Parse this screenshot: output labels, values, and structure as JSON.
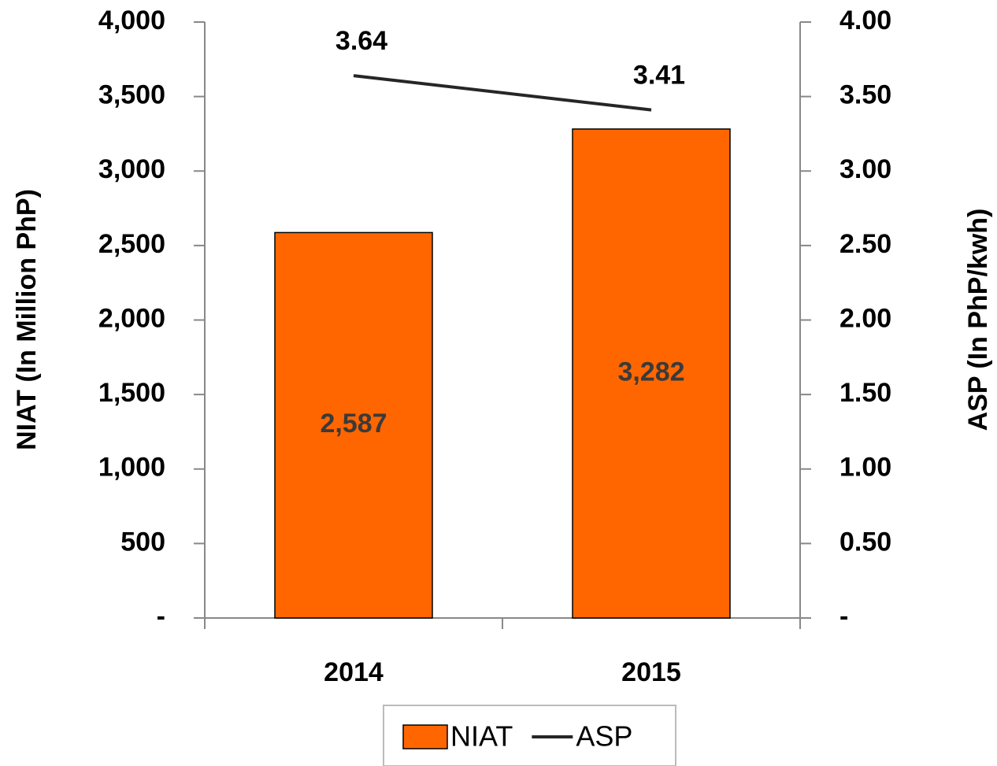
{
  "chart_data": {
    "type": "bar",
    "categories": [
      "2014",
      "2015"
    ],
    "series": [
      {
        "name": "NIAT",
        "type": "bar",
        "color": "#ff6600",
        "values": [
          2587,
          3282
        ],
        "value_labels": [
          "2,587",
          "3,282"
        ]
      },
      {
        "name": "ASP",
        "type": "line",
        "axis": "y2",
        "color": "#262626",
        "values": [
          3.64,
          3.41
        ]
      }
    ],
    "ylabel": "NIAT (In Million PhP)",
    "y2label": "ASP (In PhP/kwh)",
    "ylim": [
      0,
      4000
    ],
    "yticks": [
      {
        "value": 0,
        "label": "-"
      },
      500,
      {
        "value": 1000,
        "label": "1,000"
      },
      {
        "value": 1500,
        "label": "1,500"
      },
      {
        "value": 2000,
        "label": "2,000"
      },
      {
        "value": 2500,
        "label": "2,500"
      },
      {
        "value": 3000,
        "label": "3,000"
      },
      {
        "value": 3500,
        "label": "3,500"
      },
      {
        "value": 4000,
        "label": "4,000"
      }
    ],
    "y2lim": [
      0,
      4
    ],
    "y2ticks": [
      {
        "value": 0,
        "label": "-"
      },
      {
        "value": 0.5,
        "label": "0.50"
      },
      {
        "value": 1,
        "label": "1.00"
      },
      {
        "value": 1.5,
        "label": "1.50"
      },
      {
        "value": 2,
        "label": "2.00"
      },
      {
        "value": 2.5,
        "label": "2.50"
      },
      {
        "value": 3,
        "label": "3.00"
      },
      {
        "value": 3.5,
        "label": "3.50"
      },
      {
        "value": 4,
        "label": "4.00"
      }
    ],
    "legend": "bottom",
    "grid": false
  }
}
